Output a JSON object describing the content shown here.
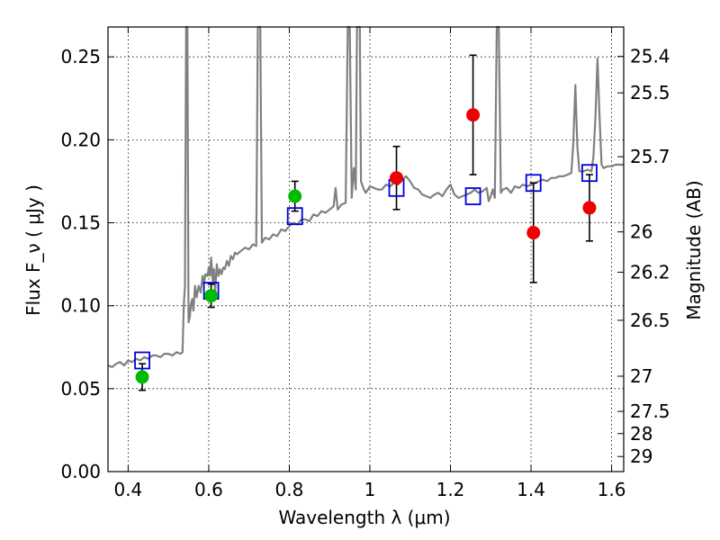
{
  "chart_data": {
    "type": "scatter",
    "xlabel": "Wavelength  λ (μm)",
    "ylabel": "Flux  F_ν  ( μJy )",
    "ylabel_right": "Magnitude (AB)",
    "xlim": [
      0.35,
      1.63
    ],
    "ylim": [
      0.0,
      0.268
    ],
    "xticks": [
      0.4,
      0.6,
      0.8,
      1.0,
      1.2,
      1.4,
      1.6
    ],
    "xtick_labels": [
      "0.4",
      "0.6",
      "0.8",
      "1",
      "1.2",
      "1.4",
      "1.6"
    ],
    "yticks": [
      0.0,
      0.05,
      0.1,
      0.15,
      0.2,
      0.25
    ],
    "ytick_labels": [
      "0.00",
      "0.05",
      "0.10",
      "0.15",
      "0.20",
      "0.25"
    ],
    "right_ticks": [
      {
        "label": "25.4",
        "flux": 0.2503
      },
      {
        "label": "25.5",
        "flux": 0.2283
      },
      {
        "label": "25.7",
        "flux": 0.1898
      },
      {
        "label": "26",
        "flux": 0.1445
      },
      {
        "label": "26.2",
        "flux": 0.1202
      },
      {
        "label": "26.5",
        "flux": 0.0912
      },
      {
        "label": "27",
        "flux": 0.0575
      },
      {
        "label": "27.5",
        "flux": 0.0363
      },
      {
        "label": "28",
        "flux": 0.0229
      },
      {
        "label": "29",
        "flux": 0.0091
      }
    ],
    "green_points": [
      {
        "x": 0.435,
        "y": 0.057,
        "err": 0.008
      },
      {
        "x": 0.606,
        "y": 0.106,
        "err": 0.007
      },
      {
        "x": 0.814,
        "y": 0.166,
        "err": 0.009
      }
    ],
    "red_points": [
      {
        "x": 1.066,
        "y": 0.177,
        "err": 0.019
      },
      {
        "x": 1.256,
        "y": 0.215,
        "err": 0.036
      },
      {
        "x": 1.406,
        "y": 0.144,
        "err": 0.03
      },
      {
        "x": 1.545,
        "y": 0.159,
        "err": 0.02
      }
    ],
    "model_boxes": [
      {
        "x": 0.435,
        "y": 0.067
      },
      {
        "x": 0.606,
        "y": 0.109
      },
      {
        "x": 0.814,
        "y": 0.154
      },
      {
        "x": 1.066,
        "y": 0.171
      },
      {
        "x": 1.256,
        "y": 0.166
      },
      {
        "x": 1.406,
        "y": 0.174
      },
      {
        "x": 1.545,
        "y": 0.18
      }
    ],
    "model_spectrum": [
      [
        0.35,
        0.064
      ],
      [
        0.36,
        0.063
      ],
      [
        0.37,
        0.065
      ],
      [
        0.38,
        0.066
      ],
      [
        0.39,
        0.064
      ],
      [
        0.4,
        0.067
      ],
      [
        0.41,
        0.066
      ],
      [
        0.42,
        0.068
      ],
      [
        0.43,
        0.067
      ],
      [
        0.44,
        0.069
      ],
      [
        0.45,
        0.068
      ],
      [
        0.46,
        0.07
      ],
      [
        0.47,
        0.07
      ],
      [
        0.48,
        0.069
      ],
      [
        0.49,
        0.071
      ],
      [
        0.5,
        0.071
      ],
      [
        0.51,
        0.07
      ],
      [
        0.52,
        0.072
      ],
      [
        0.53,
        0.071
      ],
      [
        0.535,
        0.072
      ],
      [
        0.538,
        0.1
      ],
      [
        0.541,
        0.112
      ],
      [
        0.544,
        0.268
      ],
      [
        0.547,
        0.268
      ],
      [
        0.55,
        0.09
      ],
      [
        0.553,
        0.093
      ],
      [
        0.556,
        0.101
      ],
      [
        0.559,
        0.104
      ],
      [
        0.562,
        0.097
      ],
      [
        0.566,
        0.112
      ],
      [
        0.57,
        0.105
      ],
      [
        0.575,
        0.112
      ],
      [
        0.58,
        0.108
      ],
      [
        0.585,
        0.118
      ],
      [
        0.588,
        0.113
      ],
      [
        0.592,
        0.119
      ],
      [
        0.597,
        0.118
      ],
      [
        0.6,
        0.123
      ],
      [
        0.603,
        0.118
      ],
      [
        0.606,
        0.129
      ],
      [
        0.61,
        0.115
      ],
      [
        0.613,
        0.122
      ],
      [
        0.616,
        0.108
      ],
      [
        0.62,
        0.125
      ],
      [
        0.624,
        0.118
      ],
      [
        0.628,
        0.122
      ],
      [
        0.632,
        0.119
      ],
      [
        0.636,
        0.123
      ],
      [
        0.64,
        0.122
      ],
      [
        0.645,
        0.127
      ],
      [
        0.65,
        0.124
      ],
      [
        0.655,
        0.13
      ],
      [
        0.66,
        0.128
      ],
      [
        0.665,
        0.132
      ],
      [
        0.67,
        0.131
      ],
      [
        0.68,
        0.133
      ],
      [
        0.69,
        0.135
      ],
      [
        0.7,
        0.134
      ],
      [
        0.71,
        0.137
      ],
      [
        0.718,
        0.136
      ],
      [
        0.722,
        0.268
      ],
      [
        0.728,
        0.268
      ],
      [
        0.732,
        0.138
      ],
      [
        0.74,
        0.141
      ],
      [
        0.75,
        0.14
      ],
      [
        0.76,
        0.143
      ],
      [
        0.77,
        0.142
      ],
      [
        0.78,
        0.146
      ],
      [
        0.79,
        0.145
      ],
      [
        0.8,
        0.148
      ],
      [
        0.81,
        0.15
      ],
      [
        0.82,
        0.149
      ],
      [
        0.83,
        0.152
      ],
      [
        0.84,
        0.152
      ],
      [
        0.85,
        0.151
      ],
      [
        0.86,
        0.155
      ],
      [
        0.87,
        0.154
      ],
      [
        0.88,
        0.157
      ],
      [
        0.89,
        0.156
      ],
      [
        0.9,
        0.158
      ],
      [
        0.91,
        0.16
      ],
      [
        0.915,
        0.171
      ],
      [
        0.92,
        0.158
      ],
      [
        0.93,
        0.161
      ],
      [
        0.94,
        0.162
      ],
      [
        0.945,
        0.268
      ],
      [
        0.95,
        0.268
      ],
      [
        0.955,
        0.165
      ],
      [
        0.96,
        0.183
      ],
      [
        0.965,
        0.17
      ],
      [
        0.968,
        0.268
      ],
      [
        0.975,
        0.268
      ],
      [
        0.978,
        0.175
      ],
      [
        0.985,
        0.17
      ],
      [
        0.99,
        0.168
      ],
      [
        1.0,
        0.172
      ],
      [
        1.01,
        0.171
      ],
      [
        1.02,
        0.17
      ],
      [
        1.03,
        0.17
      ],
      [
        1.04,
        0.173
      ],
      [
        1.05,
        0.172
      ],
      [
        1.06,
        0.174
      ],
      [
        1.07,
        0.173
      ],
      [
        1.08,
        0.176
      ],
      [
        1.09,
        0.178
      ],
      [
        1.1,
        0.175
      ],
      [
        1.11,
        0.171
      ],
      [
        1.12,
        0.17
      ],
      [
        1.13,
        0.167
      ],
      [
        1.14,
        0.166
      ],
      [
        1.15,
        0.165
      ],
      [
        1.16,
        0.167
      ],
      [
        1.17,
        0.168
      ],
      [
        1.18,
        0.166
      ],
      [
        1.19,
        0.17
      ],
      [
        1.2,
        0.173
      ],
      [
        1.21,
        0.167
      ],
      [
        1.22,
        0.165
      ],
      [
        1.23,
        0.166
      ],
      [
        1.24,
        0.167
      ],
      [
        1.25,
        0.168
      ],
      [
        1.26,
        0.17
      ],
      [
        1.27,
        0.168
      ],
      [
        1.28,
        0.169
      ],
      [
        1.29,
        0.171
      ],
      [
        1.295,
        0.163
      ],
      [
        1.3,
        0.166
      ],
      [
        1.305,
        0.17
      ],
      [
        1.31,
        0.165
      ],
      [
        1.315,
        0.268
      ],
      [
        1.32,
        0.268
      ],
      [
        1.325,
        0.168
      ],
      [
        1.33,
        0.17
      ],
      [
        1.34,
        0.171
      ],
      [
        1.35,
        0.168
      ],
      [
        1.36,
        0.172
      ],
      [
        1.37,
        0.171
      ],
      [
        1.38,
        0.173
      ],
      [
        1.39,
        0.172
      ],
      [
        1.4,
        0.173
      ],
      [
        1.41,
        0.174
      ],
      [
        1.42,
        0.175
      ],
      [
        1.43,
        0.176
      ],
      [
        1.44,
        0.175
      ],
      [
        1.45,
        0.177
      ],
      [
        1.46,
        0.177
      ],
      [
        1.47,
        0.178
      ],
      [
        1.48,
        0.178
      ],
      [
        1.49,
        0.179
      ],
      [
        1.5,
        0.18
      ],
      [
        1.505,
        0.198
      ],
      [
        1.51,
        0.233
      ],
      [
        1.515,
        0.196
      ],
      [
        1.52,
        0.181
      ],
      [
        1.53,
        0.181
      ],
      [
        1.54,
        0.182
      ],
      [
        1.55,
        0.181
      ],
      [
        1.555,
        0.19
      ],
      [
        1.56,
        0.215
      ],
      [
        1.565,
        0.249
      ],
      [
        1.57,
        0.215
      ],
      [
        1.575,
        0.185
      ],
      [
        1.58,
        0.183
      ],
      [
        1.59,
        0.184
      ],
      [
        1.6,
        0.184
      ],
      [
        1.61,
        0.185
      ],
      [
        1.62,
        0.185
      ],
      [
        1.63,
        0.185
      ]
    ],
    "colors": {
      "green": "#00bb00",
      "red": "#ee0000",
      "box": "#0000dd",
      "model": "#808080"
    }
  }
}
